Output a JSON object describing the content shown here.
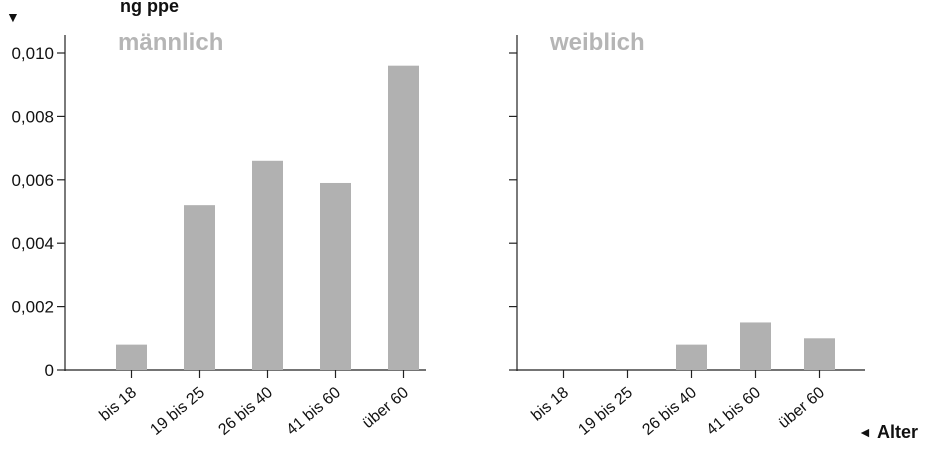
{
  "title_partial": "ng   ppe",
  "colors": {
    "bar": "#b1b1b1",
    "panel_title": "#b5b5b5",
    "axis": "#222222",
    "text": "#111111"
  },
  "chart_data": [
    {
      "type": "bar",
      "title": "männlich",
      "categories": [
        "bis 18",
        "19 bis 25",
        "26 bis 40",
        "41 bis 60",
        "über 60"
      ],
      "values": [
        0.0008,
        0.0052,
        0.0066,
        0.0059,
        0.0096
      ],
      "ylim": [
        0,
        0.01
      ],
      "yticks": [
        "0",
        "0,002",
        "0,004",
        "0,006",
        "0,008",
        "0,010"
      ],
      "xlabel": "",
      "ylabel": "",
      "grid": false
    },
    {
      "type": "bar",
      "title": "weiblich",
      "categories": [
        "bis 18",
        "19 bis 25",
        "26 bis 40",
        "41 bis 60",
        "über 60"
      ],
      "values": [
        0,
        0,
        0.0008,
        0.0015,
        0.001
      ],
      "ylim": [
        0,
        0.01
      ],
      "xlabel": "Alter",
      "ylabel": "",
      "grid": false
    }
  ]
}
